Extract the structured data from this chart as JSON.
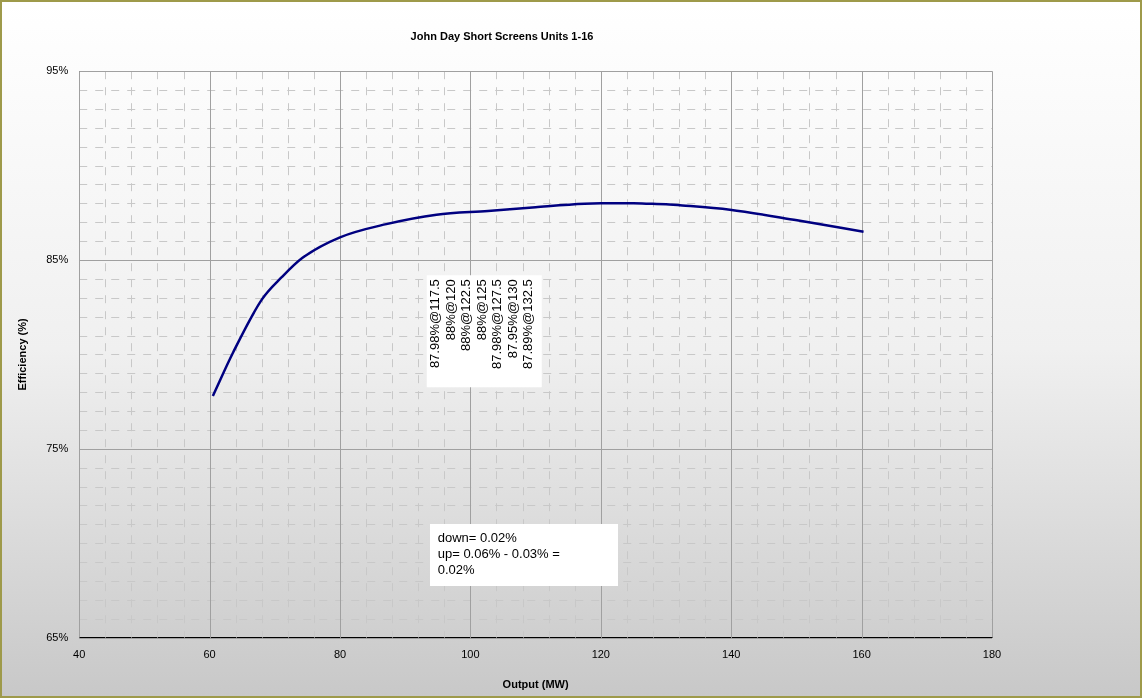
{
  "chart_data": {
    "type": "line",
    "title": "John Day Short Screens Units 1-16",
    "xlabel": "Output (MW)",
    "ylabel": "Efficiency (%)",
    "x": [
      60.5,
      63.6,
      68,
      71.1,
      74.2,
      80,
      87.1,
      94.8,
      102.7,
      110,
      117.5,
      120,
      122.5,
      125,
      127.5,
      130,
      132.5,
      139.8,
      150.1,
      160.3
    ],
    "series": [
      {
        "color": "#000080",
        "values": [
          77.8,
          80.1,
          82.9,
          84.1,
          85.1,
          86.2,
          86.9,
          87.4,
          87.6,
          87.8,
          87.98,
          88,
          88,
          88,
          87.98,
          87.95,
          87.89,
          87.66,
          87.1,
          86.5
        ]
      }
    ],
    "xlim": [
      40,
      180
    ],
    "xticks": [
      40,
      60,
      80,
      100,
      120,
      140,
      160,
      180
    ],
    "ylim": [
      65,
      95
    ],
    "yticks": [
      {
        "value": 65,
        "label": "65%"
      },
      {
        "value": 75,
        "label": "75%"
      },
      {
        "value": 85,
        "label": "85%"
      },
      {
        "value": 95,
        "label": "95%"
      }
    ],
    "grid": true,
    "legend": false,
    "marker": "none",
    "line_style": "solid",
    "annotations": [
      "87.98%@117.5",
      "88%@120",
      "88%@122.5",
      "88%@125",
      "87.98%@127.5",
      "87.95%@130",
      "87.89%@132.5",
      "down= 0.02%\nup= 0.06% - 0.03% = 0.02%"
    ]
  }
}
